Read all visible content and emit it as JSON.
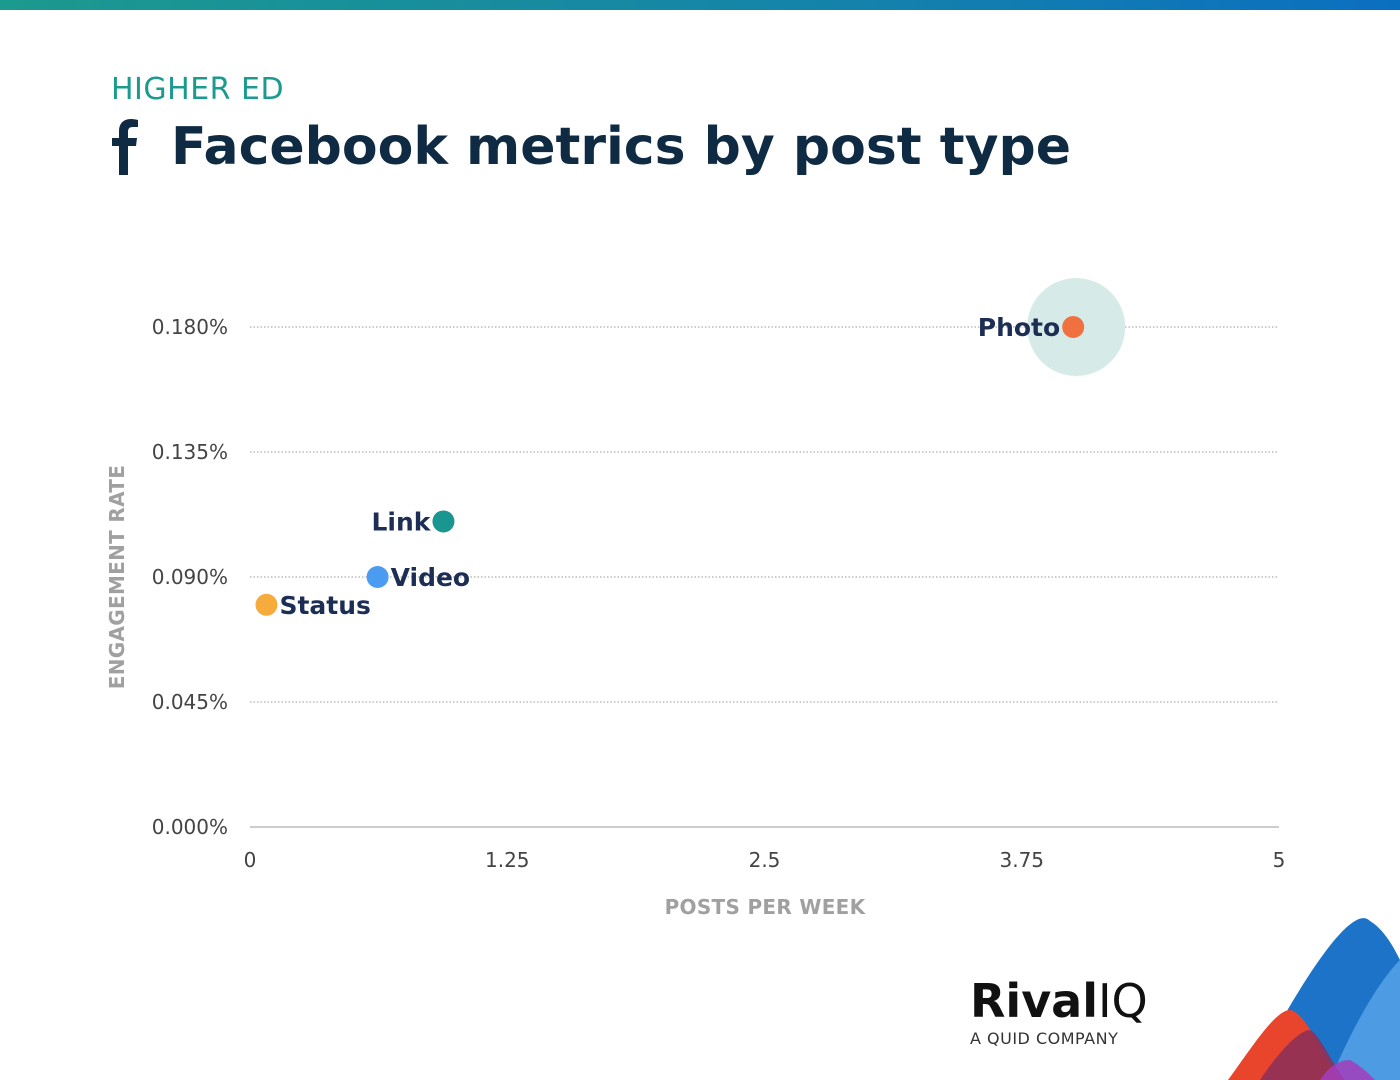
{
  "header": {
    "subtitle": "HIGHER ED",
    "title": "Facebook metrics by post type"
  },
  "logo": {
    "name_bold": "Rival",
    "name_light": "IQ",
    "tagline": "A QUID COMPANY"
  },
  "colors": {
    "title": "#0f2a43",
    "subtitle": "#1b9a8e",
    "photo": "#f07040",
    "link": "#1a9690",
    "video": "#4b9bf1",
    "status": "#f5ac3c",
    "photo_halo": "#d6ebe8"
  },
  "chart_data": {
    "type": "scatter",
    "title": "Facebook metrics by post type",
    "subtitle": "HIGHER ED",
    "xlabel": "POSTS PER WEEK",
    "ylabel": "ENGAGEMENT RATE",
    "xlim": [
      0,
      5
    ],
    "ylim": [
      0,
      0.18
    ],
    "x_ticks": [
      "0",
      "1.25",
      "2.5",
      "3.75",
      "5"
    ],
    "x_tick_values": [
      0,
      1.25,
      2.5,
      3.75,
      5
    ],
    "y_ticks": [
      "0.000%",
      "0.045%",
      "0.090%",
      "0.135%",
      "0.180%"
    ],
    "y_tick_values": [
      0,
      0.045,
      0.09,
      0.135,
      0.18
    ],
    "grid": "horizontal dotted",
    "points": [
      {
        "name": "Photo",
        "x": 4.0,
        "y": 0.18,
        "color": "#f07040",
        "label_side": "left",
        "highlight": true
      },
      {
        "name": "Link",
        "x": 0.94,
        "y": 0.11,
        "color": "#1a9690",
        "label_side": "left"
      },
      {
        "name": "Video",
        "x": 0.62,
        "y": 0.09,
        "color": "#4b9bf1",
        "label_side": "right"
      },
      {
        "name": "Status",
        "x": 0.08,
        "y": 0.08,
        "color": "#f5ac3c",
        "label_side": "right"
      }
    ]
  }
}
